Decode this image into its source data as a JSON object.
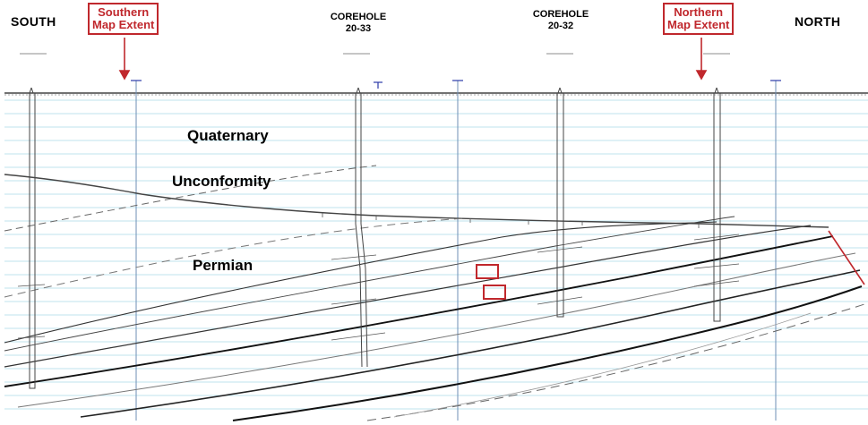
{
  "labels": {
    "south": "SOUTH",
    "north": "NORTH"
  },
  "extents": {
    "southern": {
      "line1": "Southern",
      "line2": "Map Extent"
    },
    "northern": {
      "line1": "Northern",
      "line2": "Map Extent"
    }
  },
  "coreholes": [
    {
      "line1": "COREHOLE",
      "line2": "20-33"
    },
    {
      "line1": "COREHOLE",
      "line2": "20-32"
    }
  ],
  "units": {
    "quaternary": "Quaternary",
    "unconformity": "Unconformity",
    "permian": "Permian"
  },
  "colors": {
    "extent_red": "#c0282d",
    "gridline_blue": "#bfe3ee",
    "ground_line": "#333333",
    "marker_blue": "#2b3aa8"
  },
  "icons": [
    "down-arrow-icon",
    "well-casing-icon",
    "red-highlight-box-icon"
  ]
}
